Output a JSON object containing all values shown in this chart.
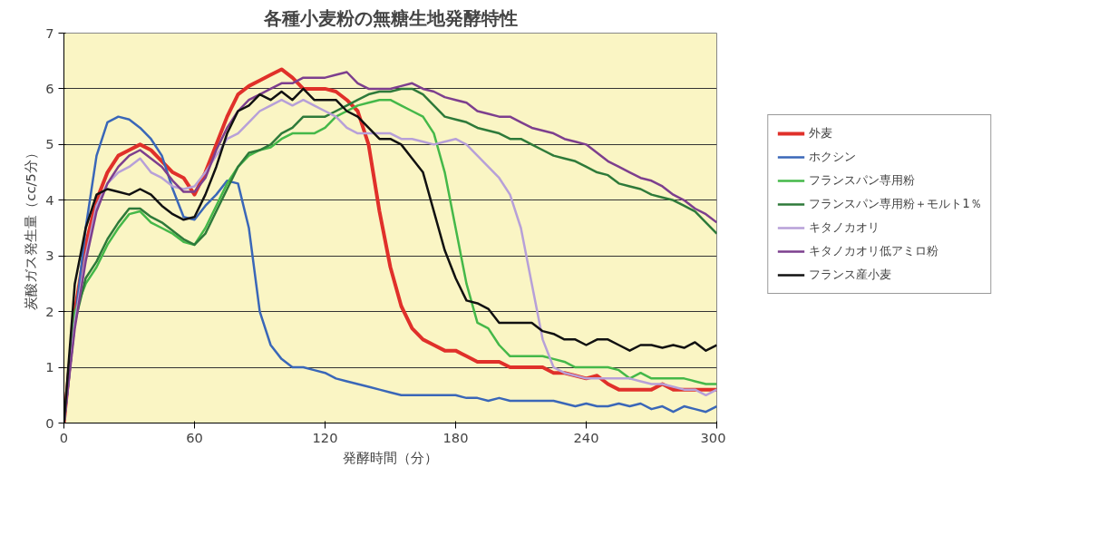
{
  "chart_data": {
    "type": "line",
    "title": "各種小麦粉の無糖生地発酵特性",
    "xlabel": "発酵時間（分）",
    "ylabel": "炭酸ガス発生量（cc/5分）",
    "x": [
      0,
      5,
      10,
      15,
      20,
      25,
      30,
      35,
      40,
      45,
      50,
      55,
      60,
      65,
      70,
      75,
      80,
      85,
      90,
      95,
      100,
      105,
      110,
      115,
      120,
      125,
      130,
      135,
      140,
      145,
      150,
      155,
      160,
      165,
      170,
      175,
      180,
      185,
      190,
      195,
      200,
      205,
      210,
      215,
      220,
      225,
      230,
      235,
      240,
      245,
      250,
      255,
      260,
      265,
      270,
      275,
      280,
      285,
      290,
      295,
      300
    ],
    "xlim": [
      0,
      300
    ],
    "xticks": [
      0,
      60,
      120,
      180,
      240,
      300
    ],
    "ylim": [
      0,
      7
    ],
    "yticks": [
      0,
      1,
      2,
      3,
      4,
      5,
      6,
      7
    ],
    "grid": "y",
    "legend": "right",
    "marker": "none",
    "line_style": "solid",
    "series": [
      {
        "name": "外麦",
        "color": "#e0302a",
        "values": [
          0,
          2.0,
          3.2,
          4.0,
          4.5,
          4.8,
          4.9,
          5.0,
          4.9,
          4.7,
          4.5,
          4.4,
          4.1,
          4.5,
          5.0,
          5.5,
          5.9,
          6.05,
          6.15,
          6.25,
          6.35,
          6.2,
          6.0,
          6.0,
          6.0,
          5.95,
          5.8,
          5.6,
          5.0,
          3.8,
          2.8,
          2.1,
          1.7,
          1.5,
          1.4,
          1.3,
          1.3,
          1.2,
          1.1,
          1.1,
          1.1,
          1.0,
          1.0,
          1.0,
          1.0,
          0.9,
          0.9,
          0.85,
          0.8,
          0.85,
          0.7,
          0.6,
          0.6,
          0.6,
          0.6,
          0.7,
          0.6,
          0.6,
          0.6,
          0.6,
          0.6
        ]
      },
      {
        "name": "ホクシン",
        "color": "#3a67b8",
        "values": [
          0,
          1.8,
          3.5,
          4.8,
          5.4,
          5.5,
          5.45,
          5.3,
          5.1,
          4.8,
          4.2,
          3.7,
          3.65,
          3.9,
          4.1,
          4.35,
          4.3,
          3.5,
          2.0,
          1.4,
          1.15,
          1.0,
          1.0,
          0.95,
          0.9,
          0.8,
          0.75,
          0.7,
          0.65,
          0.6,
          0.55,
          0.5,
          0.5,
          0.5,
          0.5,
          0.5,
          0.5,
          0.45,
          0.45,
          0.4,
          0.45,
          0.4,
          0.4,
          0.4,
          0.4,
          0.4,
          0.35,
          0.3,
          0.35,
          0.3,
          0.3,
          0.35,
          0.3,
          0.35,
          0.25,
          0.3,
          0.2,
          0.3,
          0.25,
          0.2,
          0.3
        ]
      },
      {
        "name": "フランスパン専用粉",
        "color": "#45b849",
        "values": [
          0,
          2.0,
          2.5,
          2.8,
          3.2,
          3.5,
          3.75,
          3.8,
          3.6,
          3.5,
          3.4,
          3.25,
          3.2,
          3.5,
          3.9,
          4.3,
          4.6,
          4.8,
          4.9,
          4.95,
          5.1,
          5.2,
          5.2,
          5.2,
          5.3,
          5.5,
          5.6,
          5.7,
          5.75,
          5.8,
          5.8,
          5.7,
          5.6,
          5.5,
          5.2,
          4.5,
          3.5,
          2.5,
          1.8,
          1.7,
          1.4,
          1.2,
          1.2,
          1.2,
          1.2,
          1.15,
          1.1,
          1.0,
          1.0,
          1.0,
          1.0,
          0.95,
          0.8,
          0.9,
          0.8,
          0.8,
          0.8,
          0.8,
          0.75,
          0.7,
          0.7
        ]
      },
      {
        "name": "フランスパン専用粉＋モルト1％",
        "color": "#2e7a3a",
        "values": [
          0,
          1.8,
          2.6,
          2.9,
          3.3,
          3.6,
          3.85,
          3.85,
          3.7,
          3.6,
          3.45,
          3.3,
          3.2,
          3.4,
          3.8,
          4.2,
          4.6,
          4.85,
          4.9,
          5.0,
          5.2,
          5.3,
          5.5,
          5.5,
          5.5,
          5.6,
          5.7,
          5.8,
          5.9,
          5.95,
          5.95,
          6.0,
          6.0,
          5.9,
          5.7,
          5.5,
          5.45,
          5.4,
          5.3,
          5.25,
          5.2,
          5.1,
          5.1,
          5.0,
          4.9,
          4.8,
          4.75,
          4.7,
          4.6,
          4.5,
          4.45,
          4.3,
          4.25,
          4.2,
          4.1,
          4.05,
          4.0,
          3.9,
          3.8,
          3.6,
          3.4
        ]
      },
      {
        "name": "キタノカオリ",
        "color": "#b7a0d8",
        "values": [
          0,
          1.8,
          3.0,
          3.9,
          4.3,
          4.5,
          4.6,
          4.75,
          4.5,
          4.4,
          4.25,
          4.2,
          4.25,
          4.5,
          4.8,
          5.1,
          5.2,
          5.4,
          5.6,
          5.7,
          5.8,
          5.7,
          5.8,
          5.7,
          5.6,
          5.5,
          5.3,
          5.2,
          5.2,
          5.2,
          5.2,
          5.1,
          5.1,
          5.05,
          5.0,
          5.05,
          5.1,
          5.0,
          4.8,
          4.6,
          4.4,
          4.1,
          3.5,
          2.5,
          1.5,
          1.0,
          0.9,
          0.85,
          0.8,
          0.8,
          0.8,
          0.8,
          0.8,
          0.75,
          0.7,
          0.7,
          0.65,
          0.6,
          0.6,
          0.5,
          0.6
        ]
      },
      {
        "name": "キタノカオリ低アミロ粉",
        "color": "#7d3f8e",
        "values": [
          0,
          1.7,
          2.9,
          3.8,
          4.3,
          4.6,
          4.8,
          4.9,
          4.75,
          4.6,
          4.35,
          4.15,
          4.15,
          4.4,
          4.9,
          5.3,
          5.6,
          5.8,
          5.9,
          6.0,
          6.1,
          6.1,
          6.2,
          6.2,
          6.2,
          6.25,
          6.3,
          6.1,
          6.0,
          6.0,
          6.0,
          6.05,
          6.1,
          6.0,
          5.95,
          5.85,
          5.8,
          5.75,
          5.6,
          5.55,
          5.5,
          5.5,
          5.4,
          5.3,
          5.25,
          5.2,
          5.1,
          5.05,
          5.0,
          4.85,
          4.7,
          4.6,
          4.5,
          4.4,
          4.35,
          4.25,
          4.1,
          4.0,
          3.85,
          3.75,
          3.6
        ]
      },
      {
        "name": "フランス産小麦",
        "color": "#111111",
        "values": [
          0,
          2.5,
          3.5,
          4.1,
          4.2,
          4.15,
          4.1,
          4.2,
          4.1,
          3.9,
          3.75,
          3.65,
          3.7,
          4.1,
          4.6,
          5.2,
          5.6,
          5.7,
          5.9,
          5.8,
          5.95,
          5.8,
          6.0,
          5.8,
          5.8,
          5.8,
          5.6,
          5.5,
          5.3,
          5.1,
          5.1,
          5.0,
          4.75,
          4.5,
          3.8,
          3.1,
          2.6,
          2.2,
          2.15,
          2.05,
          1.8,
          1.8,
          1.8,
          1.8,
          1.65,
          1.6,
          1.5,
          1.5,
          1.4,
          1.5,
          1.5,
          1.4,
          1.3,
          1.4,
          1.4,
          1.35,
          1.4,
          1.35,
          1.45,
          1.3,
          1.4
        ]
      }
    ]
  }
}
